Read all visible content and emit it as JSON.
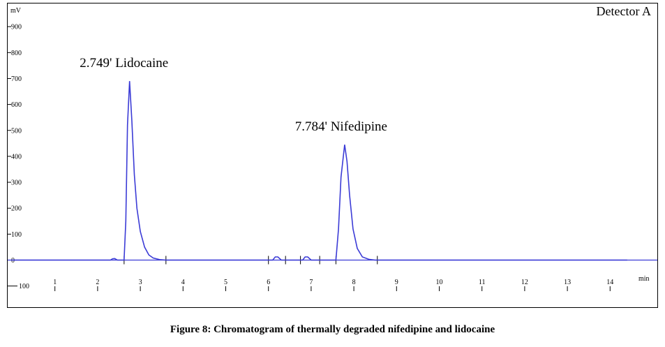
{
  "figure": {
    "caption": "Figure 8: Chromatogram of thermally degraded nifedipine and lidocaine"
  },
  "chart_data": {
    "type": "line",
    "title": "",
    "detector_label": "Detector A",
    "ylabel": "mV",
    "xlabel": "min",
    "xlim": [
      0,
      14.4
    ],
    "ylim": [
      -100,
      950
    ],
    "x_ticks": [
      1,
      2,
      3,
      4,
      5,
      6,
      7,
      8,
      9,
      10,
      11,
      12,
      13,
      14
    ],
    "y_ticks": [
      -100,
      0,
      100,
      200,
      300,
      400,
      500,
      600,
      700,
      800,
      900
    ],
    "y_tick_labels": [
      "100",
      "0",
      "100",
      "200",
      "300",
      "400",
      "500",
      "600",
      "700",
      "800",
      "900"
    ],
    "grid": false,
    "line_color": "#3b3bd6",
    "series": [
      {
        "x": [
          0.0,
          2.3,
          2.35,
          2.4,
          2.46,
          2.62,
          2.66,
          2.7,
          2.749,
          2.8,
          2.86,
          2.92,
          3.0,
          3.1,
          3.2,
          3.3,
          3.45,
          3.6,
          6.1,
          6.16,
          6.22,
          6.3,
          6.8,
          6.86,
          6.92,
          7.0,
          7.58,
          7.64,
          7.7,
          7.784,
          7.84,
          7.9,
          7.98,
          8.08,
          8.2,
          8.35,
          8.5,
          14.4
        ],
        "y": [
          0,
          0,
          5,
          6,
          0,
          0,
          150,
          520,
          690,
          540,
          330,
          200,
          110,
          50,
          20,
          8,
          2,
          0,
          0,
          12,
          12,
          0,
          0,
          12,
          12,
          0,
          0,
          120,
          320,
          445,
          380,
          250,
          120,
          45,
          12,
          3,
          0,
          0
        ]
      }
    ],
    "peaks": [
      {
        "retention_time": 2.749,
        "label": "2.749' Lidocaine",
        "height": 690
      },
      {
        "retention_time": 7.784,
        "label": "7.784' Nifedipine",
        "height": 445
      }
    ],
    "integration_marks": [
      2.62,
      3.6,
      6.0,
      6.4,
      6.75,
      7.2,
      7.58,
      8.55
    ]
  }
}
